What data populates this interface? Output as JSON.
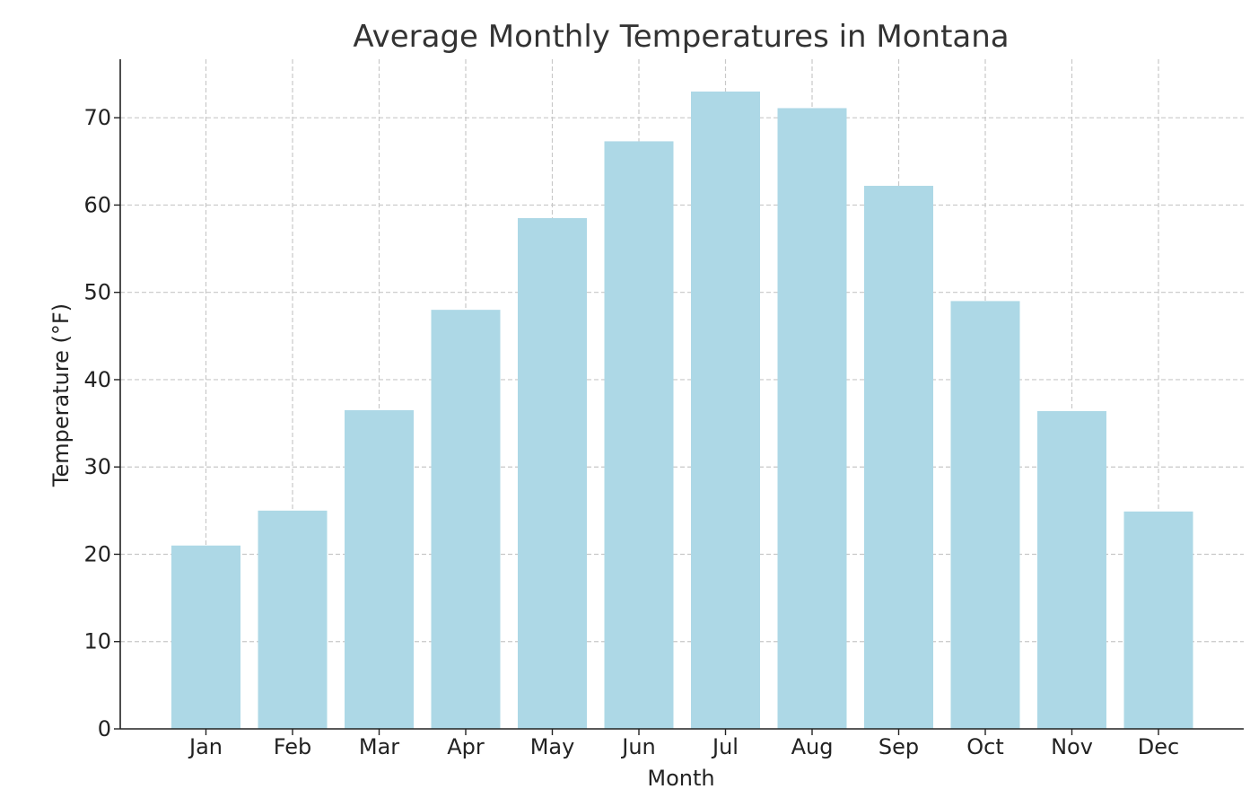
{
  "chart_data": {
    "type": "bar",
    "title": "Average Monthly Temperatures in Montana",
    "xlabel": "Month",
    "ylabel": "Temperature (°F)",
    "categories": [
      "Jan",
      "Feb",
      "Mar",
      "Apr",
      "May",
      "Jun",
      "Jul",
      "Aug",
      "Sep",
      "Oct",
      "Nov",
      "Dec"
    ],
    "values": [
      21,
      25,
      36.5,
      48,
      58.5,
      67.3,
      73,
      71.1,
      62.2,
      49,
      36.4,
      24.9
    ],
    "ylim": [
      0,
      76.7
    ],
    "yticks": [
      0,
      10,
      20,
      30,
      40,
      50,
      60,
      70
    ],
    "grid": true,
    "bar_color": "#add8e6",
    "grid_color": "#c8c8c8",
    "axis_color": "#222222",
    "title_color": "#333333"
  }
}
